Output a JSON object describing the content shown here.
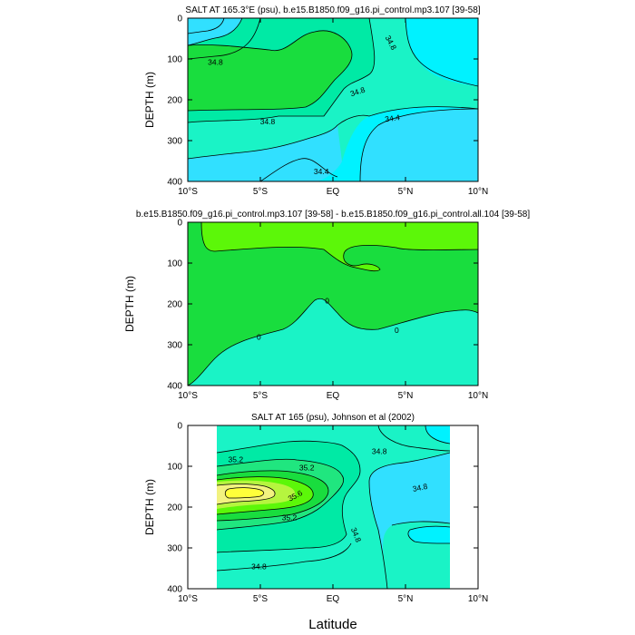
{
  "figure": {
    "shared_xlabel": "Latitude"
  },
  "colors": {
    "cyan": "#00F2FF",
    "light_cyan": "#31E0FF",
    "aqua_green": "#1AF3C6",
    "teal_green": "#00EAA5",
    "sea_green": "#20E67F",
    "green": "#19DD3E",
    "lime": "#5CF709",
    "yellow_green": "#B6F53F",
    "pale_yellow": "#F2F280",
    "yellow": "#FFFF3A",
    "line": "#000000",
    "frame": "#000000"
  },
  "chart_data": [
    {
      "type": "contour",
      "title": "SALT AT 165.3°E (psu), b.e15.B1850.f09_g16.pi_control.mp3.107 [39-58]",
      "xlabel": "",
      "ylabel": "DEPTH (m)",
      "xlim": [
        -10,
        10
      ],
      "ylim": [
        400,
        0
      ],
      "xticks": [
        -10,
        -5,
        0,
        5,
        10
      ],
      "xticklabels": [
        "10°S",
        "5°S",
        "EQ",
        "5°N",
        "10°N"
      ],
      "yticks": [
        0,
        100,
        200,
        300,
        400
      ],
      "yticklabels": [
        "0",
        "100",
        "200",
        "300",
        "400"
      ],
      "contour_labels": [
        {
          "text": "34.8",
          "lat": -8.1,
          "depth": 108,
          "rot": 0
        },
        {
          "text": "34.8",
          "lat": 4.0,
          "depth": 60,
          "rot": 62
        },
        {
          "text": "34.8",
          "lat": 1.7,
          "depth": 180,
          "rot": -18
        },
        {
          "text": "34.8",
          "lat": -4.5,
          "depth": 253,
          "rot": 0
        },
        {
          "text": "34.4",
          "lat": 4.1,
          "depth": 245,
          "rot": -8
        },
        {
          "text": "34.4",
          "lat": -0.8,
          "depth": 375,
          "rot": 0
        }
      ]
    },
    {
      "type": "contour",
      "title": "b.e15.B1850.f09_g16.pi_control.mp3.107 [39-58] - b.e15.B1850.f09_g16.pi_control.all.104 [39-58]",
      "xlabel": "",
      "ylabel": "DEPTH (m)",
      "xlim": [
        -10,
        10
      ],
      "ylim": [
        400,
        0
      ],
      "xticks": [
        -10,
        -5,
        0,
        5,
        10
      ],
      "xticklabels": [
        "10°S",
        "5°S",
        "EQ",
        "5°N",
        "10°N"
      ],
      "yticks": [
        0,
        100,
        200,
        300,
        400
      ],
      "yticklabels": [
        "0",
        "100",
        "200",
        "300",
        "400"
      ],
      "contour_labels": [
        {
          "text": "0",
          "lat": -5.1,
          "depth": 281,
          "rot": 0
        },
        {
          "text": "0",
          "lat": -0.4,
          "depth": 192,
          "rot": 0
        },
        {
          "text": "0",
          "lat": 4.4,
          "depth": 264,
          "rot": 0
        }
      ]
    },
    {
      "type": "contour",
      "title": "SALT AT 165 (psu), Johnson et al (2002)",
      "xlabel": "Latitude",
      "ylabel": "DEPTH (m)",
      "xlim": [
        -10,
        10
      ],
      "ylim": [
        400,
        0
      ],
      "data_lat_range": [
        -8,
        8
      ],
      "xticks": [
        -10,
        -5,
        0,
        5,
        10
      ],
      "xticklabels": [
        "10°S",
        "5°S",
        "EQ",
        "5°N",
        "10°N"
      ],
      "yticks": [
        0,
        100,
        200,
        300,
        400
      ],
      "yticklabels": [
        "0",
        "100",
        "200",
        "300",
        "400"
      ],
      "contour_labels": [
        {
          "text": "35.2",
          "lat": -6.7,
          "depth": 83,
          "rot": 0
        },
        {
          "text": "35.2",
          "lat": -1.8,
          "depth": 103,
          "rot": 0
        },
        {
          "text": "35.6",
          "lat": -2.6,
          "depth": 172,
          "rot": -28
        },
        {
          "text": "35.2",
          "lat": -3.0,
          "depth": 226,
          "rot": 0
        },
        {
          "text": "34.8",
          "lat": 3.2,
          "depth": 63,
          "rot": 0
        },
        {
          "text": "34.8",
          "lat": 6.0,
          "depth": 152,
          "rot": -12
        },
        {
          "text": "34.8",
          "lat": 1.6,
          "depth": 268,
          "rot": 68
        },
        {
          "text": "34.8",
          "lat": -5.1,
          "depth": 346,
          "rot": 0
        }
      ]
    }
  ]
}
